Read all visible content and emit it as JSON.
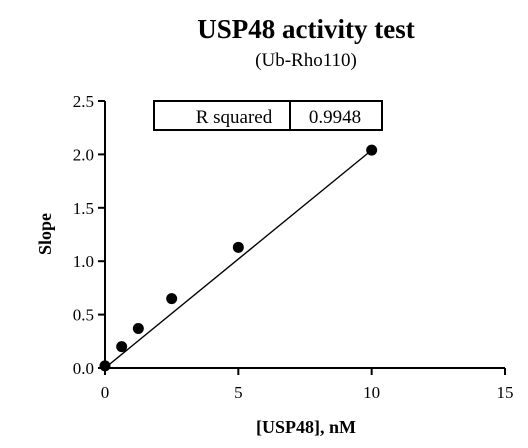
{
  "chart_data": {
    "type": "scatter",
    "title": "USP48 activity test",
    "subtitle": "(Ub-Rho110)",
    "xlabel": "[USP48], nM",
    "ylabel": "Slope",
    "xlim": [
      0,
      15
    ],
    "ylim": [
      0,
      2.5
    ],
    "x_ticks": [
      0,
      5,
      10,
      15
    ],
    "y_ticks": [
      0.0,
      0.5,
      1.0,
      1.5,
      2.0,
      2.5
    ],
    "x_tick_labels": [
      "0",
      "5",
      "10",
      "15"
    ],
    "y_tick_labels": [
      "0.0",
      "0.5",
      "1.0",
      "1.5",
      "2.0",
      "2.5"
    ],
    "grid": false,
    "points": [
      {
        "x": 0,
        "y": 0.02
      },
      {
        "x": 0.625,
        "y": 0.2
      },
      {
        "x": 1.25,
        "y": 0.37
      },
      {
        "x": 2.5,
        "y": 0.65
      },
      {
        "x": 5,
        "y": 1.13
      },
      {
        "x": 10,
        "y": 2.04
      }
    ],
    "fit_line": {
      "x": [
        0,
        10
      ],
      "y": [
        0.0,
        2.04
      ]
    },
    "annotation": {
      "label": "R squared",
      "value": "0.9948"
    }
  }
}
